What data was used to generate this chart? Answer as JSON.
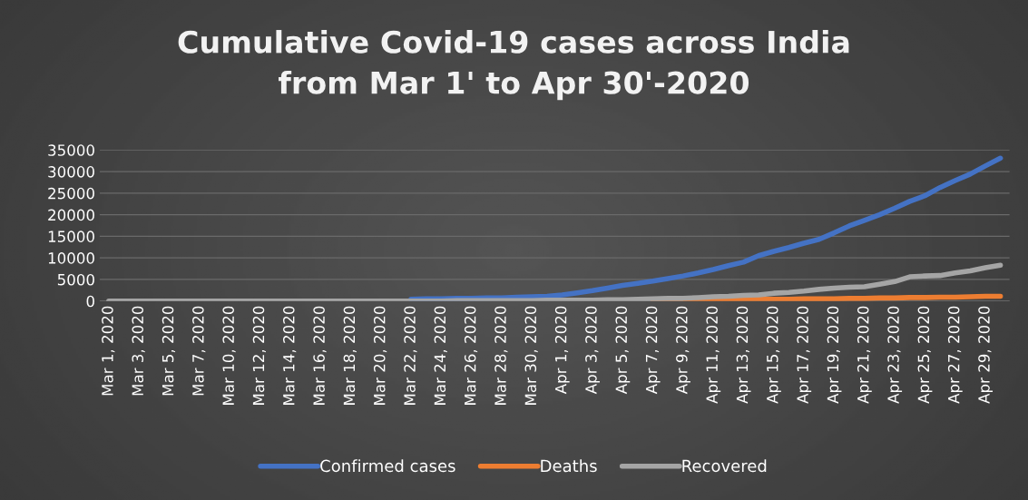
{
  "chart_data": {
    "type": "line",
    "title": "Cumulative Covid-19 cases across India\nfrom Mar 1' to Apr 30'-2020",
    "categories": [
      "Mar 1, 2020",
      null,
      "Mar 3, 2020",
      null,
      "Mar 5, 2020",
      null,
      "Mar 7, 2020",
      null,
      "Mar 10, 2020",
      null,
      "Mar 12, 2020",
      null,
      "Mar 14, 2020",
      null,
      "Mar 16, 2020",
      null,
      "Mar 18, 2020",
      null,
      "Mar 20, 2020",
      null,
      "Mar 22, 2020",
      null,
      "Mar 24, 2020",
      null,
      "Mar 26, 2020",
      null,
      "Mar 28, 2020",
      null,
      "Mar 30, 2020",
      null,
      "Apr 1, 2020",
      null,
      "Apr 3, 2020",
      null,
      "Apr 5, 2020",
      null,
      "Apr 7, 2020",
      null,
      "Apr 9, 2020",
      null,
      "Apr 11, 2020",
      null,
      "Apr 13, 2020",
      null,
      "Apr 15, 2020",
      null,
      "Apr 17, 2020",
      null,
      "Apr 19, 2020",
      null,
      "Apr 21, 2020",
      null,
      "Apr 23, 2020",
      null,
      "Apr 25, 2020",
      null,
      "Apr 27, 2020",
      null,
      "Apr 29, 2020",
      null
    ],
    "series": [
      {
        "name": "Confirmed cases",
        "color": "#4472c4",
        "values": [
          null,
          null,
          null,
          null,
          null,
          null,
          null,
          null,
          null,
          null,
          null,
          null,
          null,
          null,
          null,
          null,
          null,
          null,
          null,
          null,
          400,
          500,
          500,
          600,
          600,
          700,
          700,
          900,
          1000,
          1100,
          1400,
          1900,
          2400,
          3000,
          3600,
          4100,
          4600,
          5200,
          5800,
          6500,
          7300,
          8200,
          9000,
          10500,
          11500,
          12400,
          13400,
          14300,
          15800,
          17400,
          18700,
          20000,
          21500,
          23100,
          24400,
          26300,
          27900,
          29400,
          31300,
          33100
        ]
      },
      {
        "name": "Deaths",
        "color": "#ed7d31",
        "values": [
          null,
          null,
          null,
          null,
          null,
          null,
          null,
          null,
          null,
          null,
          null,
          null,
          null,
          null,
          null,
          null,
          null,
          null,
          null,
          null,
          null,
          null,
          null,
          null,
          null,
          null,
          null,
          null,
          null,
          null,
          null,
          null,
          null,
          null,
          null,
          null,
          100,
          200,
          200,
          200,
          300,
          300,
          300,
          400,
          400,
          400,
          500,
          500,
          500,
          600,
          600,
          700,
          700,
          800,
          800,
          900,
          900,
          1000,
          1100,
          1100
        ]
      },
      {
        "name": "Recovered",
        "color": "#a5a5a5",
        "values": [
          0,
          0,
          0,
          0,
          0,
          0,
          0,
          0,
          0,
          0,
          0,
          0,
          0,
          0,
          0,
          0,
          0,
          0,
          0,
          0,
          0,
          0,
          0,
          100,
          100,
          100,
          100,
          100,
          100,
          200,
          200,
          200,
          200,
          300,
          300,
          400,
          500,
          600,
          600,
          800,
          1000,
          1100,
          1300,
          1400,
          1800,
          2000,
          2300,
          2700,
          3000,
          3200,
          3300,
          3900,
          4500,
          5600,
          5800,
          5900,
          6500,
          7000,
          7700,
          8300
        ]
      }
    ],
    "ylim": [
      0,
      35000
    ],
    "yticks": [
      0,
      5000,
      10000,
      15000,
      20000,
      25000,
      30000,
      35000
    ],
    "grid": "y",
    "legend": "bottom",
    "line_style": "solid",
    "marker": "none"
  }
}
